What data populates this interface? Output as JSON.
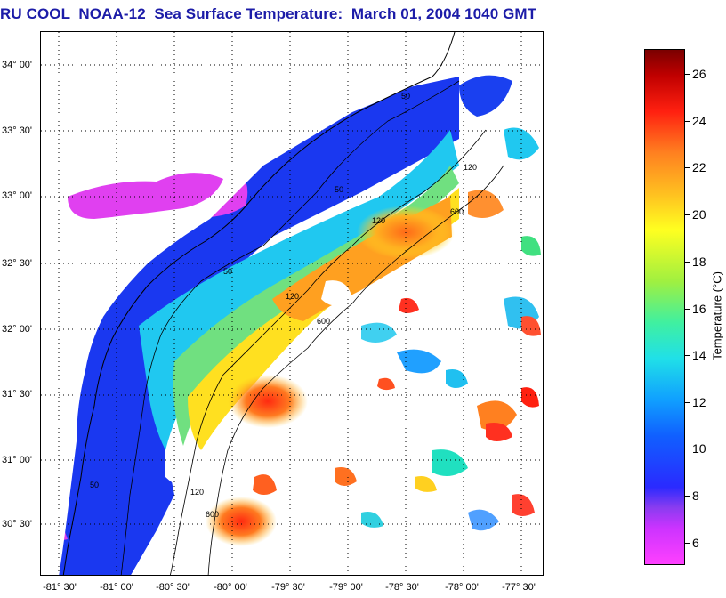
{
  "title": "RU COOL  NOAA-12  Sea Surface Temperature:  March 01, 2004 1040 GMT",
  "latitude_labels": [
    "34° 00'",
    "33° 30'",
    "33° 00'",
    "32° 30'",
    "32° 00'",
    "31° 30'",
    "31° 00'",
    "30° 30'"
  ],
  "longitude_labels": [
    "-81° 30'",
    "-81° 00'",
    "-80° 30'",
    "-80° 00'",
    "-79° 30'",
    "-79° 00'",
    "-78° 30'",
    "-78° 00'",
    "-77° 30'"
  ],
  "isobath_labels": [
    "50",
    "120",
    "600"
  ],
  "colorbar": {
    "title": "Temperature (°C)",
    "ticks": [
      "26",
      "24",
      "22",
      "20",
      "18",
      "16",
      "14",
      "12",
      "10",
      "8",
      "6"
    ],
    "range": [
      5,
      27
    ]
  },
  "colors": {
    "title_blue": "#1c1ca8",
    "land": "#ffffff",
    "cloud": "#ffffff",
    "cold": "#1a2cf0",
    "warm": "#ff3010"
  }
}
